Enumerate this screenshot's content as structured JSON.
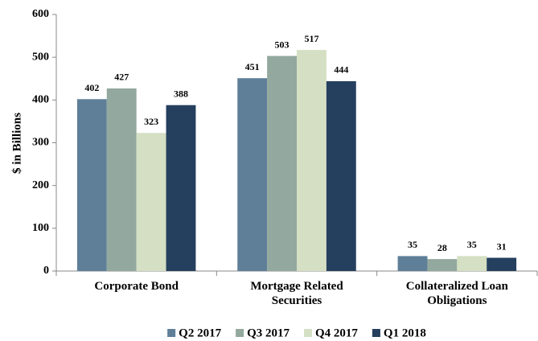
{
  "chart_data": {
    "type": "bar",
    "y_label": "$ in Billions",
    "categories": [
      "Corporate Bond",
      "Mortgage Related Securities",
      "Collateralized Loan Obligations"
    ],
    "series": [
      {
        "name": "Q2 2017",
        "color": "#5f7f99",
        "values": [
          402,
          451,
          35
        ]
      },
      {
        "name": "Q3 2017",
        "color": "#93a89e",
        "values": [
          427,
          503,
          28
        ]
      },
      {
        "name": "Q4 2017",
        "color": "#d4dfc3",
        "values": [
          323,
          517,
          35
        ]
      },
      {
        "name": "Q1 2018",
        "color": "#253f5e",
        "values": [
          388,
          444,
          31
        ]
      }
    ],
    "ylim": [
      0,
      600
    ],
    "yticks": [
      0,
      100,
      200,
      300,
      400,
      500,
      600
    ],
    "grid": false,
    "legend": "bottom"
  }
}
